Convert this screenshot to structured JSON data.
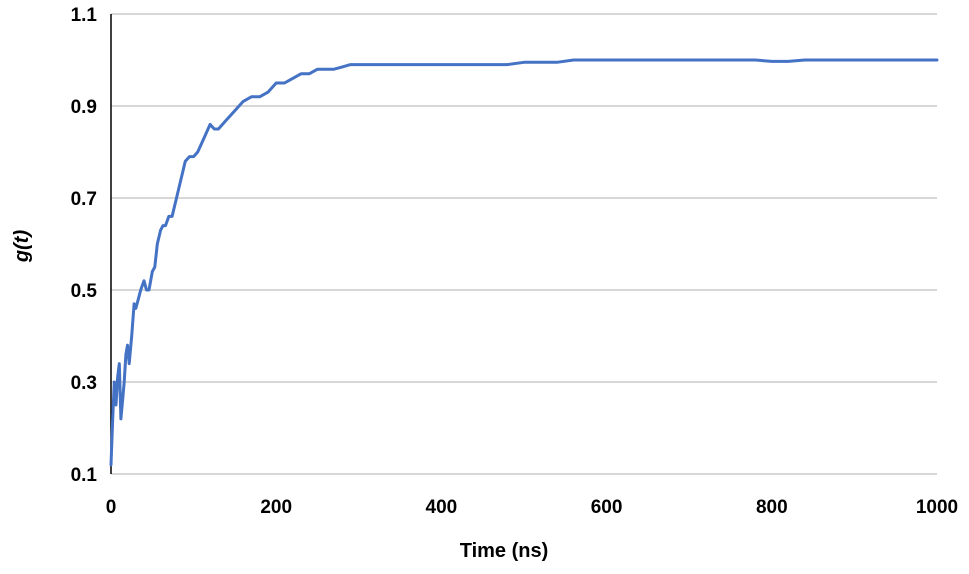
{
  "chart_data": {
    "type": "line",
    "title": "",
    "xlabel": "Time (ns)",
    "ylabel": "g(t)",
    "xlim": [
      0,
      1000
    ],
    "ylim": [
      0.1,
      1.1
    ],
    "xticks": [
      "0",
      "200",
      "400",
      "600",
      "800",
      "1000"
    ],
    "yticks": [
      "0.1",
      "0.3",
      "0.5",
      "0.7",
      "0.9",
      "1.1"
    ],
    "grid": "horizontal",
    "legend": "none",
    "colors": {
      "line": "#4472c4",
      "grid": "#bfbfbf",
      "axis": "#000000"
    },
    "series": [
      {
        "x": [
          0,
          2,
          4,
          6,
          8,
          10,
          12,
          14,
          16,
          18,
          20,
          22,
          25,
          28,
          30,
          33,
          36,
          40,
          43,
          46,
          50,
          53,
          56,
          60,
          63,
          66,
          70,
          74,
          78,
          82,
          86,
          90,
          95,
          100,
          105,
          110,
          115,
          120,
          125,
          130,
          135,
          140,
          150,
          160,
          170,
          180,
          190,
          200,
          210,
          220,
          230,
          240,
          250,
          260,
          270,
          280,
          290,
          300,
          320,
          340,
          360,
          380,
          400,
          420,
          440,
          460,
          480,
          500,
          520,
          540,
          560,
          580,
          600,
          620,
          640,
          660,
          680,
          700,
          720,
          740,
          760,
          780,
          800,
          820,
          840,
          860,
          880,
          900,
          920,
          940,
          960,
          980,
          1000
        ],
        "y": [
          0.12,
          0.22,
          0.3,
          0.25,
          0.31,
          0.34,
          0.22,
          0.26,
          0.3,
          0.36,
          0.38,
          0.34,
          0.4,
          0.47,
          0.46,
          0.48,
          0.5,
          0.52,
          0.5,
          0.5,
          0.54,
          0.55,
          0.6,
          0.63,
          0.64,
          0.64,
          0.66,
          0.66,
          0.69,
          0.72,
          0.75,
          0.78,
          0.79,
          0.79,
          0.8,
          0.82,
          0.84,
          0.86,
          0.85,
          0.85,
          0.86,
          0.87,
          0.89,
          0.91,
          0.92,
          0.92,
          0.93,
          0.95,
          0.95,
          0.96,
          0.97,
          0.97,
          0.98,
          0.98,
          0.98,
          0.985,
          0.99,
          0.99,
          0.99,
          0.99,
          0.99,
          0.99,
          0.99,
          0.99,
          0.99,
          0.99,
          0.99,
          0.995,
          0.995,
          0.995,
          1.0,
          1.0,
          1.0,
          1.0,
          1.0,
          1.0,
          1.0,
          1.0,
          1.0,
          1.0,
          1.0,
          1.0,
          0.997,
          0.997,
          1.0,
          1.0,
          1.0,
          1.0,
          1.0,
          1.0,
          1.0,
          1.0,
          1.0
        ]
      }
    ]
  }
}
